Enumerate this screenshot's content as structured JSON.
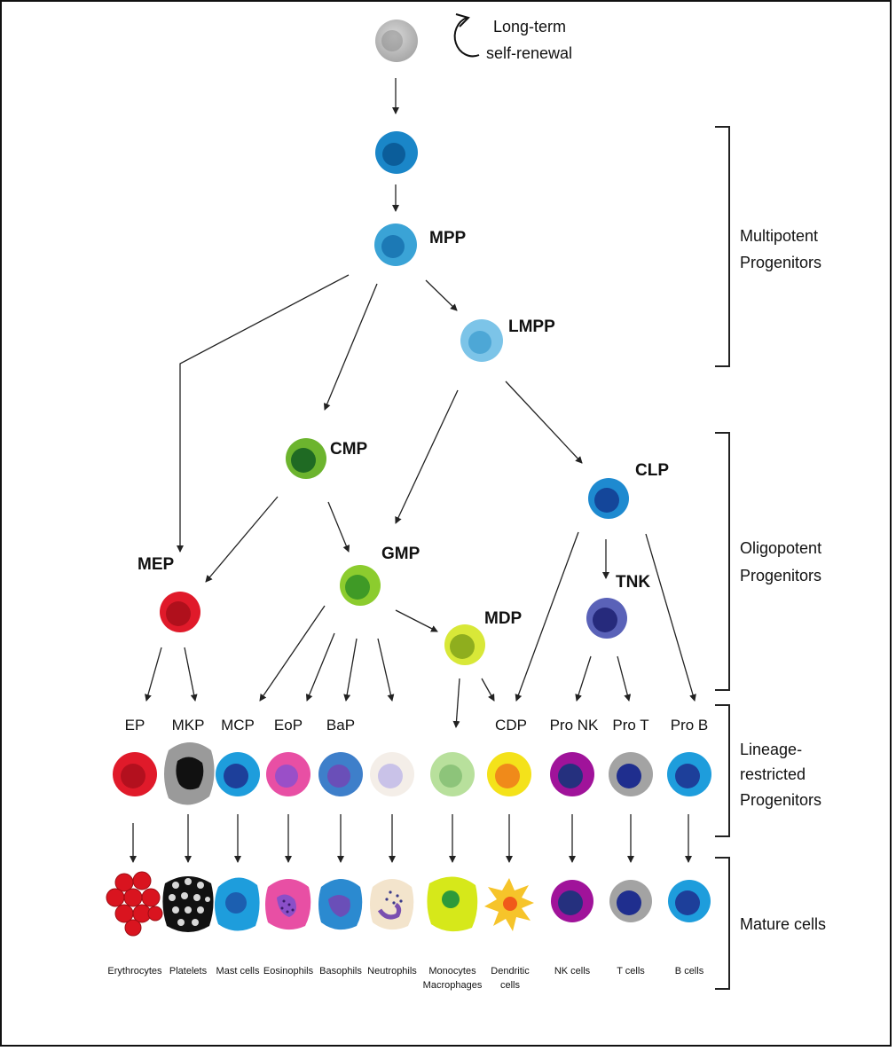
{
  "top": {
    "line1": "Long-term",
    "line2": "self-renewal"
  },
  "progenitors": {
    "mpp": "MPP",
    "lmpp": "LMPP",
    "cmp": "CMP",
    "clp": "CLP",
    "mep": "MEP",
    "gmp": "GMP",
    "mdp": "MDP",
    "tnk": "TNK"
  },
  "lineage": [
    "EP",
    "MKP",
    "MCP",
    "EoP",
    "BaP",
    "",
    "",
    "CDP",
    "Pro NK",
    "Pro T",
    "Pro B"
  ],
  "mature": [
    {
      "l1": "Erythrocytes",
      "l2": ""
    },
    {
      "l1": "Platelets",
      "l2": ""
    },
    {
      "l1": "Mast cells",
      "l2": ""
    },
    {
      "l1": "Eosinophils",
      "l2": ""
    },
    {
      "l1": "Basophils",
      "l2": ""
    },
    {
      "l1": "Neutrophils",
      "l2": ""
    },
    {
      "l1": "Monocytes",
      "l2": "Macrophages"
    },
    {
      "l1": "Dendritic",
      "l2": "cells"
    },
    {
      "l1": "NK cells",
      "l2": ""
    },
    {
      "l1": "T cells",
      "l2": ""
    },
    {
      "l1": "B cells",
      "l2": ""
    }
  ],
  "sections": {
    "multipotent": {
      "l1": "Multipotent",
      "l2": "Progenitors"
    },
    "oligopotent": {
      "l1": "Oligopotent",
      "l2": "Progenitors"
    },
    "lineage": {
      "l1": "Lineage-",
      "l2": "restricted",
      "l3": "Progenitors"
    },
    "mature": {
      "l1": "Mature cells"
    }
  },
  "colors": {
    "hsc": "#b9b9b9",
    "stHsc": "#1a86c8",
    "lmpp": "#7cc4e8",
    "cmp": "#3f9a26",
    "gmp": "#7cc22f",
    "mdp": "#c4dc2a",
    "mep": "#e01a2a",
    "clp": "#1f6fc0",
    "tnk": "#3a3f9c",
    "ep": "#e01a2a",
    "mkp": "#9a9a9a",
    "mcp": "#1e9ddc",
    "eop": "#e84fa4",
    "bap": "#3e7fca",
    "neutro": "#eee6f2",
    "mono": "#a6d98c",
    "cdp": "#f4e21a",
    "proNk": "#a0139a",
    "proT": "#a3a3a3",
    "proB": "#1e9ddc",
    "arrow": "#222222"
  }
}
